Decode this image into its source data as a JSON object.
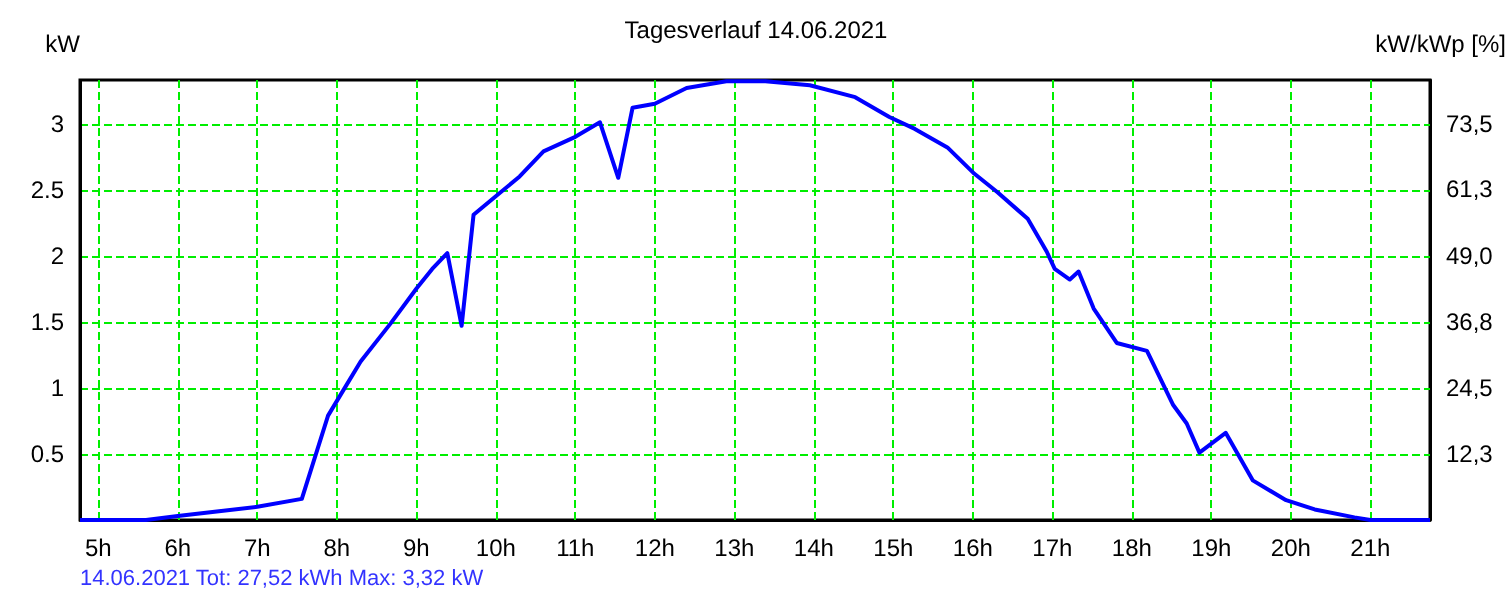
{
  "chart_data": {
    "type": "line",
    "title": "Tagesverlauf 14.06.2021",
    "ylabel": "kW",
    "y2label": "kW/kWp [%]",
    "annotations": [
      "14.06.2021 Tot: 27,52 kWh Max: 3,32 kW"
    ],
    "series": [
      {
        "color": "#0000ff",
        "x": [
          4.77,
          5.6,
          6.0,
          7.0,
          7.56,
          7.89,
          8.1,
          8.3,
          8.68,
          9.0,
          9.2,
          9.39,
          9.57,
          9.72,
          10.0,
          10.3,
          10.6,
          11.0,
          11.31,
          11.54,
          11.72,
          12.0,
          12.4,
          12.9,
          13.39,
          13.95,
          14.52,
          14.95,
          15.27,
          15.68,
          16.02,
          16.31,
          16.69,
          16.93,
          17.03,
          17.22,
          17.33,
          17.52,
          17.81,
          18.19,
          18.52,
          18.69,
          18.85,
          19.18,
          19.52,
          19.94,
          20.3,
          20.8,
          21.0,
          21.75
        ],
        "values": [
          0,
          0,
          0.03,
          0.1,
          0.16,
          0.79,
          1.0,
          1.2,
          1.49,
          1.75,
          1.9,
          2.02,
          1.47,
          2.31,
          2.45,
          2.6,
          2.79,
          2.9,
          3.01,
          2.59,
          3.12,
          3.15,
          3.27,
          3.32,
          3.32,
          3.29,
          3.2,
          3.05,
          2.96,
          2.82,
          2.62,
          2.48,
          2.28,
          2.03,
          1.9,
          1.82,
          1.88,
          1.6,
          1.34,
          1.28,
          0.87,
          0.73,
          0.51,
          0.66,
          0.3,
          0.15,
          0.08,
          0.02,
          0,
          0
        ]
      }
    ],
    "xlim": [
      4.77,
      21.75
    ],
    "xticks": [
      {
        "value": 5,
        "label": "5h"
      },
      {
        "value": 6,
        "label": "6h"
      },
      {
        "value": 7,
        "label": "7h"
      },
      {
        "value": 8,
        "label": "8h"
      },
      {
        "value": 9,
        "label": "9h"
      },
      {
        "value": 10,
        "label": "10h"
      },
      {
        "value": 11,
        "label": "11h"
      },
      {
        "value": 12,
        "label": "12h"
      },
      {
        "value": 13,
        "label": "13h"
      },
      {
        "value": 14,
        "label": "14h"
      },
      {
        "value": 15,
        "label": "15h"
      },
      {
        "value": 16,
        "label": "16h"
      },
      {
        "value": 17,
        "label": "17h"
      },
      {
        "value": 18,
        "label": "18h"
      },
      {
        "value": 19,
        "label": "19h"
      },
      {
        "value": 20,
        "label": "20h"
      },
      {
        "value": 21,
        "label": "21h"
      }
    ],
    "ylim": [
      0,
      3.33
    ],
    "yticks": [
      0.5,
      1,
      1.5,
      2,
      2.5,
      3
    ],
    "y2lim": [
      0,
      81.6
    ],
    "y2ticks": [
      {
        "value": 12.3,
        "label": "12,3"
      },
      {
        "value": 24.5,
        "label": "24,5"
      },
      {
        "value": 36.8,
        "label": "36,8"
      },
      {
        "value": 49,
        "label": "49,0"
      },
      {
        "value": 61.3,
        "label": "61,3"
      },
      {
        "value": 73.5,
        "label": "73,5"
      }
    ],
    "grid": true,
    "marker": "none",
    "line_style": "solid"
  }
}
